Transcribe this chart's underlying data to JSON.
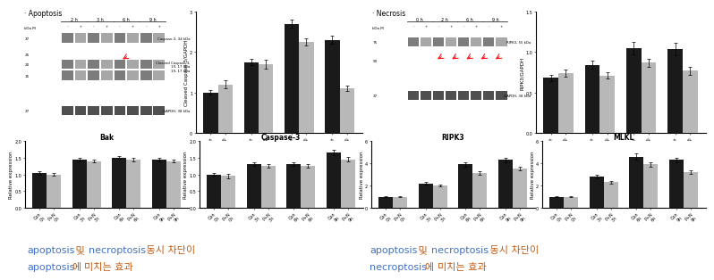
{
  "left_title": "· Apoptosis",
  "right_title": "· Necrosis",
  "caption_color_blue": "#4472C4",
  "caption_color_orange": "#C55A11",
  "bar_color_dark": "#1a1a1a",
  "bar_color_light": "#b8b8b8",
  "tick_labels_top": [
    "Con\n0 h",
    "P+N\n0 h",
    "Con\n3 h",
    "P+N\n3 h",
    "Con\n6 h",
    "P+N\n6 h",
    "Con\n9 h",
    "P+N\n9 h"
  ],
  "tick_labels_bot": [
    "Con\n0h",
    "P+N\n0h",
    "Con\n3h",
    "P+N\n3h",
    "Con\n6h",
    "P+N\n6h",
    "Con\n9h",
    "P+N\n9h"
  ],
  "cleaved_casp3_vals": [
    1.0,
    1.2,
    1.75,
    1.7,
    2.7,
    2.25,
    2.3,
    1.1
  ],
  "cleaved_casp3_err": [
    0.06,
    0.1,
    0.08,
    0.1,
    0.1,
    0.08,
    0.1,
    0.07
  ],
  "cleaved_casp3_ylabel": "Cleaved Caspase-3/GAPDH",
  "cleaved_casp3_ylim": [
    0,
    3.0
  ],
  "cleaved_casp3_yticks": [
    0,
    1,
    2,
    3
  ],
  "bak_title": "Bak",
  "bak_vals": [
    1.05,
    1.0,
    1.45,
    1.4,
    1.5,
    1.45,
    1.45,
    1.4
  ],
  "bak_err": [
    0.05,
    0.05,
    0.05,
    0.05,
    0.04,
    0.05,
    0.05,
    0.04
  ],
  "bak_ylabel": "Relative expression",
  "bak_ylim": [
    0.0,
    2.0
  ],
  "bak_yticks": [
    0.0,
    0.5,
    1.0,
    1.5,
    2.0
  ],
  "casp3_title": "Caspase-3",
  "casp3_vals": [
    1.0,
    0.95,
    1.3,
    1.25,
    1.3,
    1.25,
    1.65,
    1.45
  ],
  "casp3_err": [
    0.04,
    0.06,
    0.05,
    0.05,
    0.05,
    0.05,
    0.08,
    0.06
  ],
  "casp3_ylabel": "Relative expression",
  "casp3_ylim": [
    0.0,
    2.0
  ],
  "casp3_yticks": [
    0.0,
    0.5,
    1.0,
    1.5,
    2.0
  ],
  "ripk3_bar_vals": [
    0.68,
    0.74,
    0.84,
    0.71,
    1.05,
    0.87,
    1.04,
    0.77
  ],
  "ripk3_bar_err": [
    0.04,
    0.04,
    0.05,
    0.04,
    0.08,
    0.05,
    0.08,
    0.05
  ],
  "ripk3_bar_ylabel": "RIPK3/GAPDH",
  "ripk3_bar_ylim": [
    0.0,
    1.5
  ],
  "ripk3_bar_yticks": [
    0.0,
    0.5,
    1.0,
    1.5
  ],
  "ripk3_title": "RIPK3",
  "ripk3_vals": [
    1.0,
    1.0,
    2.2,
    2.0,
    3.9,
    3.1,
    4.3,
    3.5
  ],
  "ripk3_err": [
    0.05,
    0.05,
    0.12,
    0.1,
    0.2,
    0.15,
    0.2,
    0.15
  ],
  "ripk3_ylabel": "Relative expression",
  "ripk3_ylim": [
    0,
    6
  ],
  "ripk3_yticks": [
    0,
    2,
    4,
    6
  ],
  "mlkl_title": "MLKL",
  "mlkl_vals": [
    1.0,
    1.0,
    2.8,
    2.3,
    4.6,
    3.9,
    4.3,
    3.2
  ],
  "mlkl_err": [
    0.05,
    0.05,
    0.15,
    0.12,
    0.25,
    0.2,
    0.2,
    0.15
  ],
  "mlkl_ylabel": "Relative expression",
  "mlkl_ylim": [
    0,
    6
  ],
  "mlkl_yticks": [
    0,
    2,
    4,
    6
  ],
  "background_color": "#ffffff"
}
